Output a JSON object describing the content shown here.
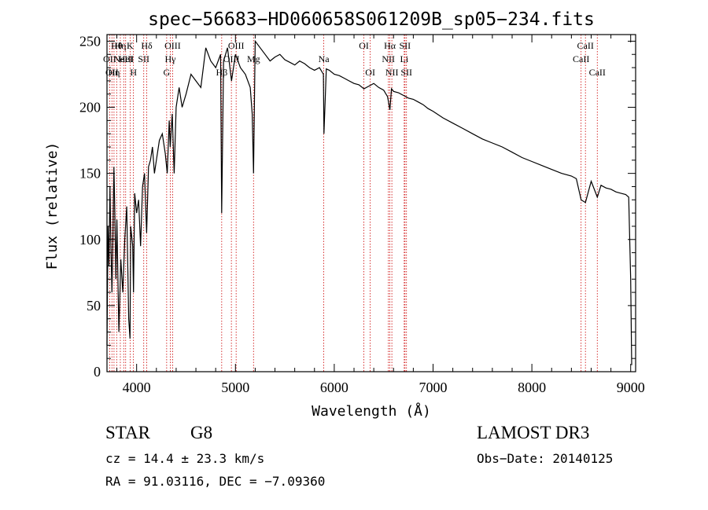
{
  "chart_data": {
    "type": "line",
    "title": "spec−56683−HD060658S061209B_sp05−234.fits",
    "xlabel": "Wavelength (Å)",
    "ylabel": "Flux (relative)",
    "xlim": [
      3700,
      9050
    ],
    "ylim": [
      0,
      255
    ],
    "x_ticks": [
      4000,
      5000,
      6000,
      7000,
      8000,
      9000
    ],
    "y_ticks": [
      0,
      50,
      100,
      150,
      200,
      250
    ],
    "grid": false,
    "series": [
      {
        "name": "spectrum",
        "x": [
          3700,
          3710,
          3720,
          3730,
          3740,
          3750,
          3760,
          3770,
          3780,
          3790,
          3800,
          3820,
          3840,
          3860,
          3880,
          3900,
          3920,
          3933,
          3940,
          3960,
          3968,
          3980,
          4000,
          4020,
          4040,
          4060,
          4080,
          4101,
          4120,
          4140,
          4160,
          4180,
          4200,
          4230,
          4260,
          4290,
          4310,
          4330,
          4340,
          4360,
          4380,
          4400,
          4430,
          4460,
          4500,
          4550,
          4600,
          4650,
          4700,
          4750,
          4800,
          4850,
          4861,
          4880,
          4920,
          4960,
          5000,
          5050,
          5100,
          5150,
          5170,
          5183,
          5200,
          5250,
          5300,
          5350,
          5400,
          5450,
          5500,
          5550,
          5600,
          5650,
          5700,
          5750,
          5800,
          5850,
          5890,
          5896,
          5920,
          5950,
          6000,
          6050,
          6100,
          6150,
          6200,
          6250,
          6300,
          6350,
          6400,
          6450,
          6500,
          6540,
          6563,
          6580,
          6600,
          6650,
          6700,
          6750,
          6800,
          6850,
          6900,
          6950,
          7000,
          7100,
          7200,
          7300,
          7400,
          7500,
          7600,
          7700,
          7800,
          7900,
          8000,
          8100,
          8200,
          8300,
          8400,
          8450,
          8498,
          8542,
          8600,
          8662,
          8700,
          8750,
          8800,
          8850,
          8900,
          8950,
          8980,
          9000,
          9010
        ],
        "values": [
          20,
          110,
          80,
          140,
          95,
          60,
          100,
          155,
          120,
          70,
          115,
          30,
          85,
          60,
          100,
          125,
          40,
          25,
          110,
          95,
          60,
          135,
          120,
          130,
          95,
          140,
          150,
          105,
          155,
          160,
          170,
          150,
          160,
          175,
          180,
          165,
          150,
          190,
          170,
          195,
          150,
          200,
          215,
          200,
          210,
          225,
          220,
          215,
          245,
          235,
          230,
          240,
          120,
          235,
          245,
          220,
          240,
          230,
          225,
          215,
          195,
          150,
          250,
          245,
          240,
          235,
          238,
          240,
          236,
          234,
          232,
          235,
          233,
          230,
          228,
          230,
          225,
          180,
          229,
          228,
          225,
          224,
          222,
          220,
          218,
          217,
          214,
          216,
          218,
          215,
          213,
          208,
          198,
          214,
          212,
          211,
          209,
          207,
          206,
          204,
          202,
          199,
          197,
          192,
          188,
          184,
          180,
          176,
          173,
          170,
          166,
          162,
          159,
          156,
          153,
          150,
          148,
          146,
          130,
          128,
          144,
          132,
          141,
          139,
          138,
          136,
          135,
          134,
          132,
          70,
          5
        ]
      }
    ],
    "lines": [
      {
        "w": 3727,
        "row": 1,
        "label": "OII"
      },
      {
        "w": 3750,
        "row": 2,
        "label": "OII"
      },
      {
        "w": 3771,
        "row": 2,
        "label": "Hη"
      },
      {
        "w": 3798,
        "row": 0,
        "label": "Hθ"
      },
      {
        "w": 3835,
        "row": 0,
        "label": "Hη"
      },
      {
        "w": 3869,
        "row": 1,
        "label": "NeIII"
      },
      {
        "w": 3889,
        "row": 1,
        "label": "HeI"
      },
      {
        "w": 3934,
        "row": 0,
        "label": "K"
      },
      {
        "w": 3968,
        "row": 2,
        "label": "H"
      },
      {
        "w": 4072,
        "row": 1,
        "label": "SII"
      },
      {
        "w": 4102,
        "row": 0,
        "label": "Hδ"
      },
      {
        "w": 4304,
        "row": 2,
        "label": "G"
      },
      {
        "w": 4341,
        "row": 1,
        "label": "Hγ"
      },
      {
        "w": 4364,
        "row": 0,
        "label": "OIII"
      },
      {
        "w": 4861,
        "row": 2,
        "label": "Hβ"
      },
      {
        "w": 4959,
        "row": 1,
        "label": "OIII"
      },
      {
        "w": 5007,
        "row": 0,
        "label": "OIII"
      },
      {
        "w": 5183,
        "row": 1,
        "label": "Mg"
      },
      {
        "w": 5894,
        "row": 1,
        "label": "Na"
      },
      {
        "w": 6300,
        "row": 0,
        "label": "OI"
      },
      {
        "w": 6364,
        "row": 2,
        "label": "OI"
      },
      {
        "w": 6548,
        "row": 1,
        "label": "NII"
      },
      {
        "w": 6563,
        "row": 0,
        "label": "Hα"
      },
      {
        "w": 6583,
        "row": 2,
        "label": "NII"
      },
      {
        "w": 6708,
        "row": 1,
        "label": "Li"
      },
      {
        "w": 6716,
        "row": 0,
        "label": "SII"
      },
      {
        "w": 6731,
        "row": 2,
        "label": "SII"
      },
      {
        "w": 8498,
        "row": 1,
        "label": "CaII"
      },
      {
        "w": 8542,
        "row": 0,
        "label": "CaII"
      },
      {
        "w": 8662,
        "row": 2,
        "label": "CaII"
      }
    ]
  },
  "info": {
    "object_class": "STAR",
    "subclass": "G8",
    "survey": "LAMOST DR3",
    "cz": "cz = 14.4 ± 23.3 km/s",
    "obs_date": "Obs−Date: 20140125",
    "coords": "RA =  91.03116, DEC =  −7.09360"
  },
  "colors": {
    "spectrum": "#000000",
    "lines": "#cc0000",
    "axes": "#000000",
    "background": "#ffffff"
  }
}
